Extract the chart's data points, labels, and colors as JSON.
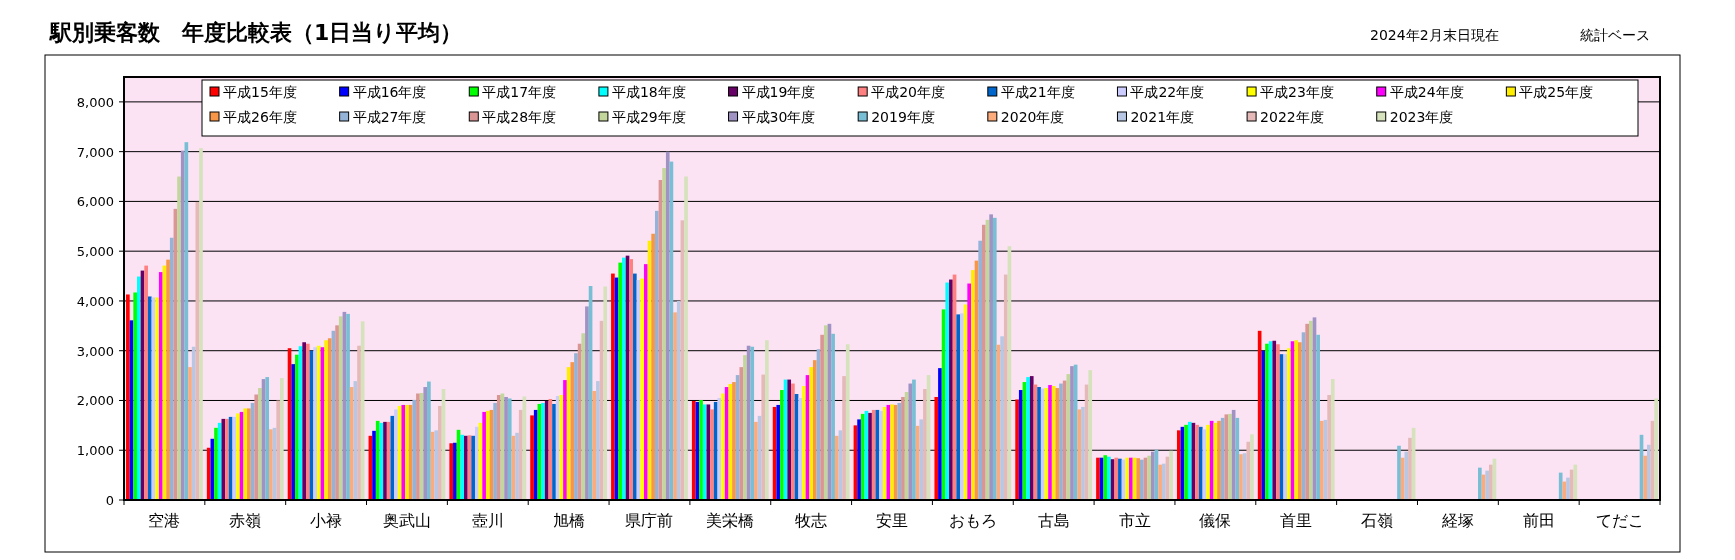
{
  "chart_data": {
    "type": "bar",
    "title": "駅別乗客数　年度比較表（1日当り平均）",
    "annotations": [
      "2024年2月末日現在",
      "統計ベース"
    ],
    "categories": [
      "空港",
      "赤嶺",
      "小禄",
      "奥武山",
      "壺川",
      "旭橋",
      "県庁前",
      "美栄橋",
      "牧志",
      "安里",
      "おもろ",
      "古島",
      "市立",
      "儀保",
      "首里",
      "石嶺",
      "経塚",
      "前田",
      "てだこ"
    ],
    "series": [
      {
        "name": "平成15年度",
        "color": "#ff0000",
        "values": [
          4130,
          1050,
          3050,
          1290,
          1140,
          1700,
          4550,
          1990,
          1870,
          1500,
          2070,
          2020,
          850,
          1400,
          3400,
          null,
          null,
          null,
          null
        ]
      },
      {
        "name": "平成16年度",
        "color": "#0000ff",
        "values": [
          3610,
          1230,
          2730,
          1390,
          1150,
          1810,
          4470,
          1970,
          1910,
          1620,
          2650,
          2210,
          850,
          1470,
          3000,
          null,
          null,
          null,
          null
        ]
      },
      {
        "name": "平成17年度",
        "color": "#00ff00",
        "values": [
          4170,
          1450,
          2920,
          1590,
          1410,
          1930,
          4770,
          2010,
          2210,
          1730,
          3830,
          2370,
          900,
          1510,
          3140,
          null,
          null,
          null,
          null
        ]
      },
      {
        "name": "平成18年度",
        "color": "#00ffff",
        "values": [
          4490,
          1550,
          3090,
          1550,
          1310,
          1950,
          4870,
          1920,
          2420,
          1790,
          4370,
          2470,
          870,
          1570,
          3190,
          null,
          null,
          null,
          null
        ]
      },
      {
        "name": "平成19年度",
        "color": "#660066",
        "values": [
          4610,
          1630,
          3170,
          1570,
          1290,
          1990,
          4910,
          1920,
          2420,
          1750,
          4430,
          2490,
          820,
          1550,
          3200,
          null,
          null,
          null,
          null
        ]
      },
      {
        "name": "平成20年度",
        "color": "#ff8080",
        "values": [
          4710,
          1630,
          3140,
          1570,
          1300,
          2030,
          4840,
          1820,
          2340,
          1810,
          4530,
          2320,
          850,
          1510,
          3130,
          null,
          null,
          null,
          null
        ]
      },
      {
        "name": "平成21年度",
        "color": "#0066cc",
        "values": [
          4090,
          1670,
          3000,
          1690,
          1290,
          1930,
          4550,
          1970,
          2130,
          1810,
          3730,
          2270,
          830,
          1470,
          2930,
          null,
          null,
          null,
          null
        ]
      },
      {
        "name": "平成22年度",
        "color": "#ccccff",
        "values": [
          4070,
          1670,
          3070,
          1820,
          1470,
          2090,
          4420,
          2050,
          2050,
          1790,
          3750,
          2240,
          810,
          1420,
          2930,
          null,
          null,
          null,
          null
        ]
      },
      {
        "name": "平成23年度",
        "color": "#ffff00",
        "values": [
          4070,
          1740,
          3100,
          1890,
          1550,
          2110,
          4450,
          2140,
          2290,
          1870,
          3930,
          2250,
          850,
          1510,
          3050,
          null,
          null,
          null,
          null
        ]
      },
      {
        "name": "平成24年度",
        "color": "#ff00ff",
        "values": [
          4580,
          1770,
          3070,
          1910,
          1770,
          2410,
          4740,
          2270,
          2510,
          1910,
          4350,
          2310,
          850,
          1590,
          3190,
          null,
          null,
          null,
          null
        ]
      },
      {
        "name": "平成25年度",
        "color": "#ffee00",
        "values": [
          4710,
          1840,
          3210,
          1910,
          1790,
          2670,
          5210,
          2330,
          2670,
          1920,
          4620,
          2290,
          850,
          1550,
          3210,
          null,
          null,
          null,
          null
        ]
      },
      {
        "name": "平成26年度",
        "color": "#f79646",
        "values": [
          4830,
          1840,
          3250,
          1910,
          1810,
          2770,
          5350,
          2370,
          2810,
          1910,
          4810,
          2250,
          840,
          1590,
          3170,
          null,
          null,
          null,
          null
        ]
      },
      {
        "name": "平成27年度",
        "color": "#95b3d7",
        "values": [
          5270,
          1950,
          3400,
          2010,
          1950,
          2950,
          5810,
          2510,
          3030,
          1950,
          5210,
          2340,
          810,
          1650,
          3370,
          null,
          null,
          null,
          null
        ]
      },
      {
        "name": "平成28年度",
        "color": "#d99694",
        "values": [
          5850,
          2120,
          3510,
          2140,
          2110,
          3140,
          6430,
          2670,
          3320,
          2070,
          5530,
          2400,
          850,
          1720,
          3540,
          null,
          null,
          null,
          null
        ]
      },
      {
        "name": "平成29年度",
        "color": "#c3d69b",
        "values": [
          6500,
          2250,
          3690,
          2150,
          2140,
          3350,
          6670,
          2910,
          3510,
          2170,
          5630,
          2530,
          890,
          1730,
          3600,
          null,
          null,
          null,
          null
        ]
      },
      {
        "name": "平成30年度",
        "color": "#a093c4",
        "values": [
          7020,
          2430,
          3780,
          2270,
          2070,
          3890,
          7000,
          3100,
          3540,
          2340,
          5740,
          2690,
          970,
          1810,
          3670,
          null,
          null,
          null,
          null
        ]
      },
      {
        "name": "2019年度",
        "color": "#78bed4",
        "values": [
          7190,
          2470,
          3740,
          2380,
          2040,
          4300,
          6800,
          3080,
          3340,
          2420,
          5670,
          2720,
          1010,
          1650,
          3320,
          1090,
          650,
          550,
          1310
        ]
      },
      {
        "name": "2020年度",
        "color": "#fbab7c",
        "values": [
          2670,
          1420,
          2270,
          1370,
          1290,
          2190,
          3770,
          1570,
          1290,
          1490,
          3120,
          1820,
          710,
          920,
          1590,
          850,
          510,
          370,
          890
        ]
      },
      {
        "name": "2021年度",
        "color": "#b8c8e4",
        "values": [
          3080,
          1450,
          2390,
          1400,
          1350,
          2390,
          4000,
          1690,
          1400,
          1620,
          3290,
          1870,
          730,
          940,
          1610,
          970,
          590,
          450,
          1110
        ]
      },
      {
        "name": "2022年度",
        "color": "#e4b9b8",
        "values": [
          5990,
          2000,
          3100,
          1890,
          1810,
          3600,
          5620,
          2520,
          2490,
          2230,
          4530,
          2320,
          870,
          1170,
          2110,
          1250,
          710,
          610,
          1590
        ]
      },
      {
        "name": "2023年度",
        "color": "#d5e2bb",
        "values": [
          7070,
          2450,
          3590,
          2230,
          2080,
          4290,
          6500,
          3210,
          3130,
          2510,
          5100,
          2610,
          990,
          1320,
          2430,
          1450,
          830,
          710,
          2040
        ]
      }
    ],
    "ylim": [
      0,
      8500
    ],
    "yticks": [
      0,
      {
        "value": 1000,
        "label": "1,000"
      },
      {
        "value": 2000,
        "label": "2,000"
      },
      {
        "value": 3000,
        "label": "3,000"
      },
      {
        "value": 4000,
        "label": "4,000"
      },
      {
        "value": 5000,
        "label": "5,000"
      },
      {
        "value": 6000,
        "label": "6,000"
      },
      {
        "value": 7000,
        "label": "7,000"
      },
      {
        "value": 8000,
        "label": "8,000"
      }
    ],
    "grid": "y",
    "legend": "top"
  }
}
